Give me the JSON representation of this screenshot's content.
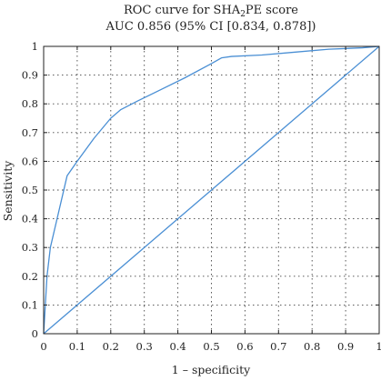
{
  "title": {
    "line1_prefix": "ROC curve for SHA",
    "line1_sub": "2",
    "line1_suffix": "PE score",
    "line2": "AUC 0.856 (95% CI [0.834, 0.878])"
  },
  "colors": {
    "series": "#4a8fd4",
    "axis": "#222222",
    "grid": "#444444"
  },
  "chart_data": {
    "type": "line",
    "title": "ROC curve for SHA2PE score — AUC 0.856 (95% CI [0.834, 0.878])",
    "xlabel": "1 – specificity",
    "ylabel": "Sensitivity",
    "xlim": [
      0,
      1
    ],
    "ylim": [
      0,
      1
    ],
    "grid": true,
    "xticks": [
      "0",
      "0.1",
      "0.2",
      "0.3",
      "0.4",
      "0.5",
      "0.6",
      "0.7",
      "0.8",
      "0.9",
      "1"
    ],
    "yticks": [
      "0",
      "0.1",
      "0.2",
      "0.3",
      "0.4",
      "0.5",
      "0.6",
      "0.7",
      "0.8",
      "0.9",
      "1"
    ],
    "series": [
      {
        "x": [
          0,
          0.005,
          0.01,
          0.02,
          0.04,
          0.07,
          0.1,
          0.15,
          0.2,
          0.23,
          0.28,
          0.35,
          0.42,
          0.5,
          0.53,
          0.56,
          0.65,
          0.75,
          0.85,
          0.95,
          1
        ],
        "y": [
          0,
          0.1,
          0.2,
          0.3,
          0.4,
          0.55,
          0.6,
          0.68,
          0.75,
          0.78,
          0.81,
          0.85,
          0.89,
          0.94,
          0.96,
          0.965,
          0.97,
          0.98,
          0.99,
          0.995,
          1
        ]
      },
      {
        "x": [
          0,
          1
        ],
        "y": [
          0,
          1
        ]
      }
    ]
  }
}
